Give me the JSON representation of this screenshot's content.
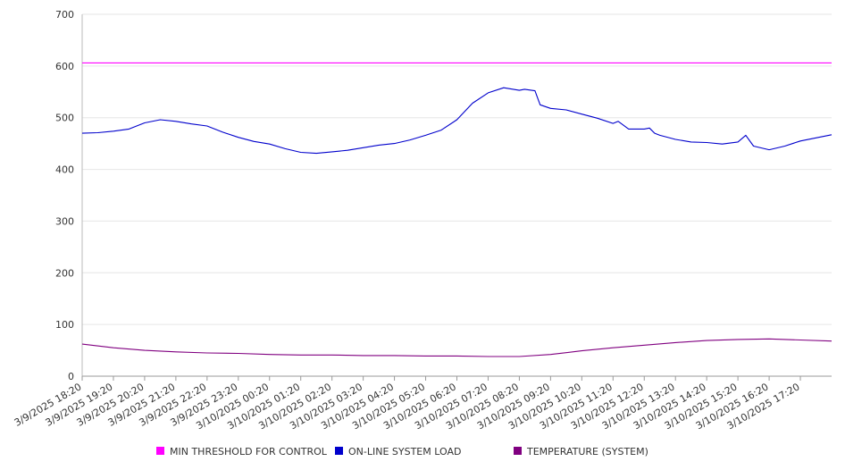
{
  "chart_data": {
    "type": "line",
    "title": "",
    "xlabel": "",
    "ylabel": "",
    "ylim": [
      0,
      700
    ],
    "y_ticks": [
      "0",
      "100",
      "200",
      "300",
      "400",
      "500",
      "600",
      "700"
    ],
    "grid": "horizontal",
    "legend_position": "bottom",
    "x_start": "3/9/2025 18:20",
    "x_end": "3/10/2025 18:20",
    "x_labels": [
      "3/9/2025 18:20",
      "3/9/2025 19:20",
      "3/9/2025 20:20",
      "3/9/2025 21:20",
      "3/9/2025 22:20",
      "3/9/2025 23:20",
      "3/10/2025 00:20",
      "3/10/2025 01:20",
      "3/10/2025 02:20",
      "3/10/2025 03:20",
      "3/10/2025 04:20",
      "3/10/2025 05:20",
      "3/10/2025 06:20",
      "3/10/2025 07:20",
      "3/10/2025 08:20",
      "3/10/2025 09:20",
      "3/10/2025 10:20",
      "3/10/2025 11:20",
      "3/10/2025 12:20",
      "3/10/2025 13:20",
      "3/10/2025 14:20",
      "3/10/2025 15:20",
      "3/10/2025 16:20",
      "3/10/2025 17:20"
    ],
    "series": [
      {
        "name": "MIN THRESHOLD FOR CONTROL",
        "color": "#ff00ff",
        "x": [
          "3/9/2025 18:20",
          "3/10/2025 18:20"
        ],
        "values": [
          606,
          606
        ]
      },
      {
        "name": "ON-LINE SYSTEM LOAD",
        "color": "#0000cc",
        "x": [
          "3/9/2025 18:20",
          "3/9/2025 18:50",
          "3/9/2025 19:20",
          "3/9/2025 19:50",
          "3/9/2025 20:20",
          "3/9/2025 20:50",
          "3/9/2025 21:20",
          "3/9/2025 21:50",
          "3/9/2025 22:20",
          "3/9/2025 22:50",
          "3/9/2025 23:20",
          "3/9/2025 23:50",
          "3/10/2025 00:20",
          "3/10/2025 00:50",
          "3/10/2025 01:20",
          "3/10/2025 01:50",
          "3/10/2025 02:20",
          "3/10/2025 02:50",
          "3/10/2025 03:20",
          "3/10/2025 03:50",
          "3/10/2025 04:20",
          "3/10/2025 04:50",
          "3/10/2025 05:20",
          "3/10/2025 05:50",
          "3/10/2025 06:20",
          "3/10/2025 06:50",
          "3/10/2025 07:20",
          "3/10/2025 07:50",
          "3/10/2025 08:20",
          "3/10/2025 08:30",
          "3/10/2025 08:50",
          "3/10/2025 09:00",
          "3/10/2025 09:20",
          "3/10/2025 09:50",
          "3/10/2025 10:20",
          "3/10/2025 10:50",
          "3/10/2025 11:20",
          "3/10/2025 11:30",
          "3/10/2025 11:50",
          "3/10/2025 12:20",
          "3/10/2025 12:30",
          "3/10/2025 12:40",
          "3/10/2025 12:50",
          "3/10/2025 13:20",
          "3/10/2025 13:50",
          "3/10/2025 14:20",
          "3/10/2025 14:50",
          "3/10/2025 15:20",
          "3/10/2025 15:35",
          "3/10/2025 15:50",
          "3/10/2025 16:20",
          "3/10/2025 16:50",
          "3/10/2025 17:20",
          "3/10/2025 17:50",
          "3/10/2025 18:20"
        ],
        "values": [
          470,
          471,
          474,
          478,
          490,
          496,
          493,
          488,
          484,
          472,
          462,
          454,
          449,
          440,
          433,
          431,
          434,
          437,
          442,
          447,
          450,
          457,
          466,
          476,
          496,
          528,
          548,
          558,
          553,
          555,
          552,
          525,
          518,
          515,
          507,
          499,
          489,
          493,
          478,
          478,
          480,
          470,
          466,
          458,
          453,
          452,
          449,
          453,
          466,
          445,
          438,
          445,
          455,
          461,
          467
        ]
      },
      {
        "name": "TEMPERATURE (SYSTEM)",
        "color": "#800080",
        "x": [
          "3/9/2025 18:20",
          "3/9/2025 19:20",
          "3/9/2025 20:20",
          "3/9/2025 21:20",
          "3/9/2025 22:20",
          "3/9/2025 23:20",
          "3/10/2025 00:20",
          "3/10/2025 01:20",
          "3/10/2025 02:20",
          "3/10/2025 03:20",
          "3/10/2025 04:20",
          "3/10/2025 05:20",
          "3/10/2025 06:20",
          "3/10/2025 07:20",
          "3/10/2025 08:20",
          "3/10/2025 09:20",
          "3/10/2025 10:20",
          "3/10/2025 11:20",
          "3/10/2025 12:20",
          "3/10/2025 13:20",
          "3/10/2025 14:20",
          "3/10/2025 15:20",
          "3/10/2025 16:20",
          "3/10/2025 17:20",
          "3/10/2025 18:20"
        ],
        "values": [
          62,
          55,
          50,
          47,
          45,
          44,
          42,
          41,
          41,
          40,
          40,
          39,
          39,
          38,
          38,
          42,
          49,
          55,
          60,
          65,
          69,
          71,
          72,
          70,
          68
        ]
      }
    ]
  }
}
